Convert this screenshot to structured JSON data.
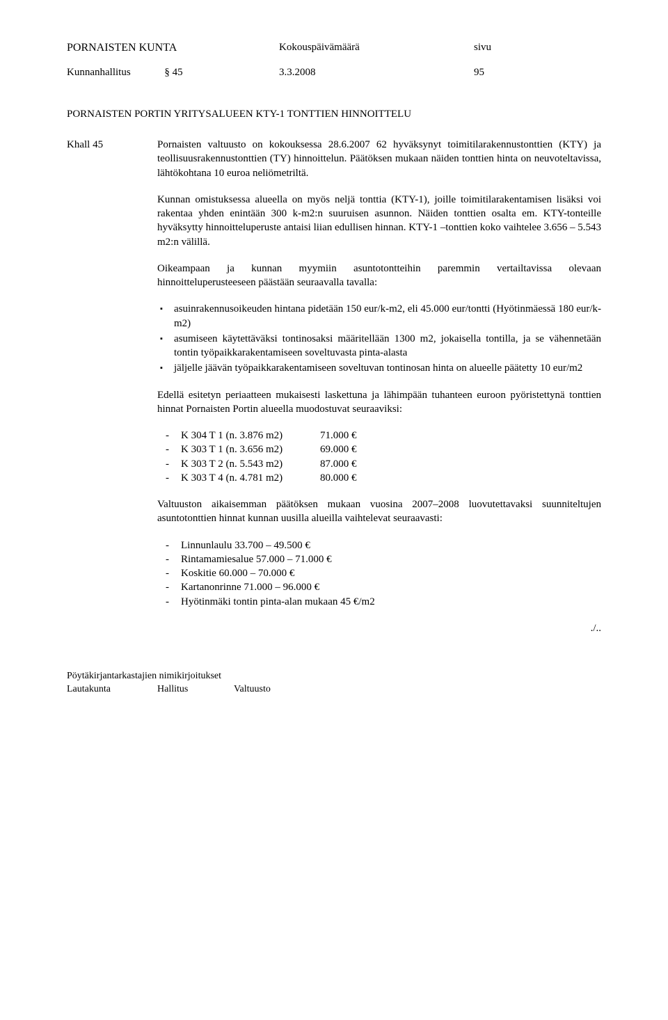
{
  "header": {
    "org": "PORNAISTEN KUNTA",
    "mid": "Kokouspäivämäärä",
    "right": "sivu",
    "body": "Kunnanhallitus",
    "section": "§ 45",
    "date": "3.3.2008",
    "page": "95"
  },
  "title": "PORNAISTEN PORTIN YRITYSALUEEN KTY-1 TONTTIEN HINNOITTELU",
  "leftLabel": "Khall 45",
  "p1": "Pornaisten valtuusto on kokouksessa 28.6.2007 62 hyväksynyt toimitilarakennustonttien (KTY) ja teollisuusrakennustonttien (TY) hinnoittelun. Päätöksen mukaan näiden tonttien hinta on neuvoteltavissa, lähtökohtana 10 euroa neliömetriltä.",
  "p2": "Kunnan omistuksessa alueella on myös neljä tonttia (KTY-1), joille toimitilarakentamisen lisäksi voi rakentaa yhden enintään 300 k-m2:n suuruisen asunnon. Näiden tonttien osalta em. KTY-tonteille hyväksytty hinnoitteluperuste antaisi liian edullisen hinnan. KTY-1 –tonttien koko vaihtelee 3.656 – 5.543 m2:n välillä.",
  "p3": "Oikeampaan ja kunnan myymiin asuntotontteihin paremmin vertailtavissa olevaan hinnoitteluperusteeseen päästään seuraavalla tavalla:",
  "bullets": [
    "asuinrakennusoikeuden hintana pidetään 150 eur/k-m2, eli 45.000 eur/tontti (Hyötinmäessä 180 eur/k-m2)",
    "asumiseen käytettäväksi tontinosaksi määritellään 1300 m2, jokaisella tontilla, ja se vähennetään tontin työpaikkarakentamiseen soveltuvasta pinta-alasta",
    "jäljelle jäävän työpaikkarakentamiseen soveltuvan tontinosan hinta on alueelle päätetty 10 eur/m2"
  ],
  "p4": "Edellä esitetyn periaatteen mukaisesti laskettuna ja lähimpään tuhanteen euroon pyöristettynä tonttien hinnat Pornaisten Portin alueella muodostuvat seuraaviksi:",
  "plots": [
    {
      "label": "K 304 T 1 (n. 3.876 m2)",
      "price": "71.000 €"
    },
    {
      "label": "K 303 T 1 (n. 3.656 m2)",
      "price": "69.000 €"
    },
    {
      "label": "K 303 T 2 (n. 5.543 m2)",
      "price": "87.000 €"
    },
    {
      "label": "K 303 T 4 (n. 4.781 m2)",
      "price": "80.000 €"
    }
  ],
  "p5": "Valtuuston aikaisemman päätöksen mukaan vuosina 2007–2008 luovutettavaksi suunniteltujen asuntotonttien hinnat kunnan uusilla alueilla vaihtelevat seuraavasti:",
  "areas": [
    "Linnunlaulu 33.700 – 49.500 €",
    "Rintamamiesalue 57.000 – 71.000 €",
    "Koskitie 60.000 – 70.000 €",
    "Kartanonrinne 71.000 – 96.000 €",
    "Hyötinmäki tontin pinta-alan mukaan 45 €/m2"
  ],
  "cont": "./..",
  "footer": {
    "line1": "Pöytäkirjantarkastajien nimikirjoitukset",
    "c1": "Lautakunta",
    "c2": "Hallitus",
    "c3": "Valtuusto"
  }
}
